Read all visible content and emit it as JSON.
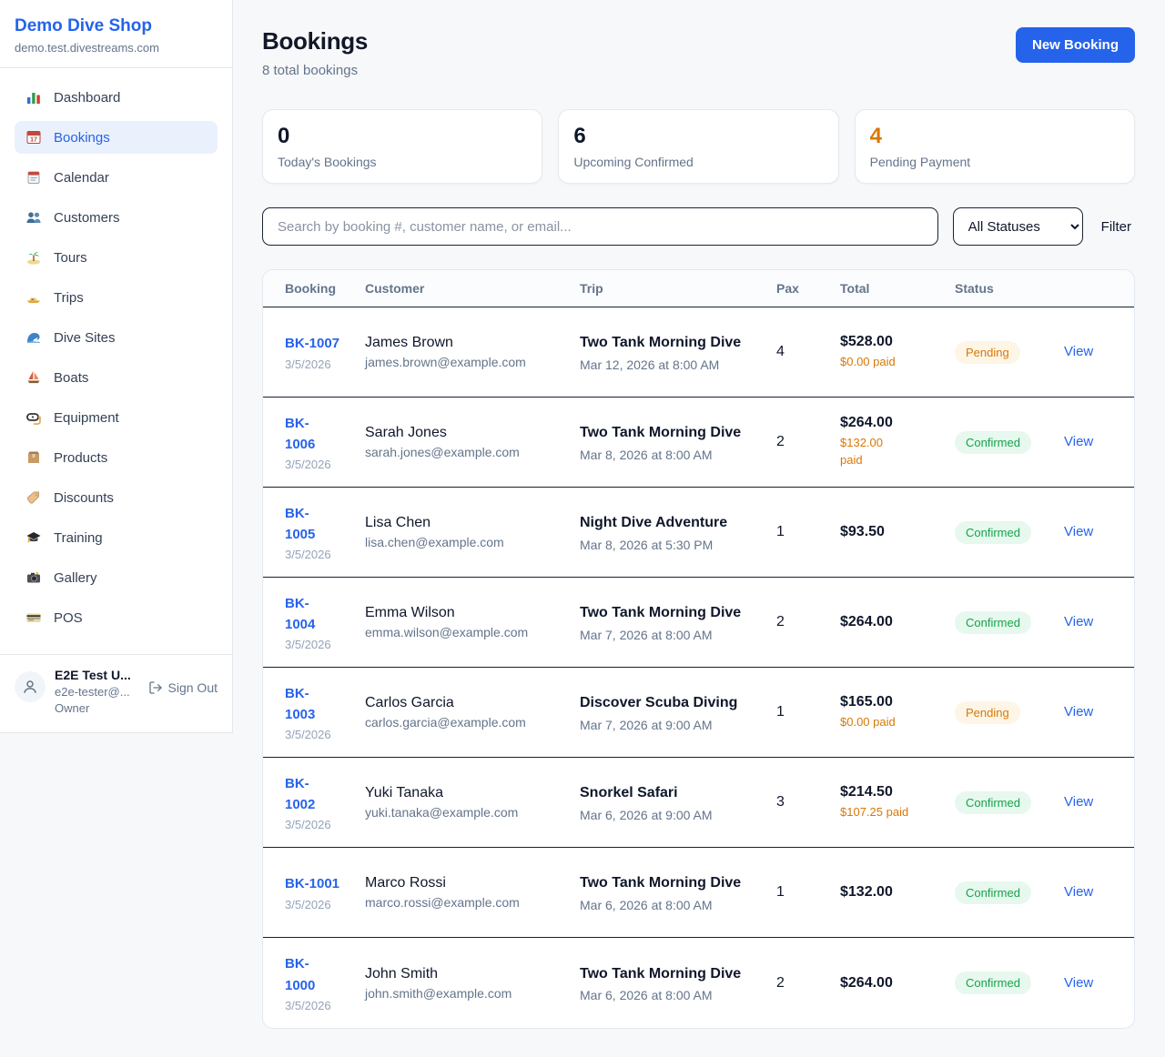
{
  "brand": {
    "name": "Demo Dive Shop",
    "domain": "demo.test.divestreams.com"
  },
  "sidebar": {
    "items": [
      {
        "label": "Dashboard",
        "icon": "bar-chart-icon",
        "active": false
      },
      {
        "label": "Bookings",
        "icon": "calendar-17-icon",
        "active": true
      },
      {
        "label": "Calendar",
        "icon": "calendar-pad-icon",
        "active": false
      },
      {
        "label": "Customers",
        "icon": "users-icon",
        "active": false
      },
      {
        "label": "Tours",
        "icon": "island-icon",
        "active": false
      },
      {
        "label": "Trips",
        "icon": "speedboat-icon",
        "active": false
      },
      {
        "label": "Dive Sites",
        "icon": "wave-icon",
        "active": false
      },
      {
        "label": "Boats",
        "icon": "sailboat-icon",
        "active": false
      },
      {
        "label": "Equipment",
        "icon": "dive-mask-icon",
        "active": false
      },
      {
        "label": "Products",
        "icon": "box-icon",
        "active": false
      },
      {
        "label": "Discounts",
        "icon": "tag-icon",
        "active": false
      },
      {
        "label": "Training",
        "icon": "grad-cap-icon",
        "active": false
      },
      {
        "label": "Gallery",
        "icon": "camera-icon",
        "active": false
      },
      {
        "label": "POS",
        "icon": "credit-card-icon",
        "active": false
      }
    ],
    "user": {
      "name": "E2E Test U...",
      "email": "e2e-tester@...",
      "role": "Owner",
      "signout_label": "Sign Out"
    }
  },
  "header": {
    "title": "Bookings",
    "subtitle": "8 total bookings",
    "new_booking_label": "New Booking"
  },
  "stats": [
    {
      "value": "0",
      "label": "Today's Bookings",
      "accent": false
    },
    {
      "value": "6",
      "label": "Upcoming Confirmed",
      "accent": false
    },
    {
      "value": "4",
      "label": "Pending Payment",
      "accent": true
    }
  ],
  "controls": {
    "search_placeholder": "Search by booking #, customer name, or email...",
    "status_filter_value": "All Statuses",
    "filter_label": "Filter"
  },
  "table": {
    "columns": [
      "Booking",
      "Customer",
      "Trip",
      "Pax",
      "Total",
      "Status"
    ],
    "view_label": "View",
    "rows": [
      {
        "id": "BK-1007",
        "date": "3/5/2026",
        "name": "James Brown",
        "email": "james.brown@example.com",
        "trip": "Two Tank Morning Dive",
        "datetime": "Mar 12, 2026 at 8:00 AM",
        "pax": "4",
        "total": "$528.00",
        "paid": "$0.00 paid",
        "status": "Pending",
        "status_type": "pending"
      },
      {
        "id": "BK-\n1006",
        "date": "3/5/2026",
        "name": "Sarah Jones",
        "email": "sarah.jones@example.com",
        "trip": "Two Tank Morning Dive",
        "datetime": "Mar 8, 2026 at 8:00 AM",
        "pax": "2",
        "total": "$264.00",
        "paid": "$132.00\npaid",
        "status": "Confirmed",
        "status_type": "confirmed"
      },
      {
        "id": "BK-\n1005",
        "date": "3/5/2026",
        "name": "Lisa Chen",
        "email": "lisa.chen@example.com",
        "trip": "Night Dive Adventure",
        "datetime": "Mar 8, 2026 at 5:30 PM",
        "pax": "1",
        "total": "$93.50",
        "paid": null,
        "status": "Confirmed",
        "status_type": "confirmed"
      },
      {
        "id": "BK-\n1004",
        "date": "3/5/2026",
        "name": "Emma Wilson",
        "email": "emma.wilson@example.com",
        "trip": "Two Tank Morning Dive",
        "datetime": "Mar 7, 2026 at 8:00 AM",
        "pax": "2",
        "total": "$264.00",
        "paid": null,
        "status": "Confirmed",
        "status_type": "confirmed"
      },
      {
        "id": "BK-\n1003",
        "date": "3/5/2026",
        "name": "Carlos Garcia",
        "email": "carlos.garcia@example.com",
        "trip": "Discover Scuba Diving",
        "datetime": "Mar 7, 2026 at 9:00 AM",
        "pax": "1",
        "total": "$165.00",
        "paid": "$0.00 paid",
        "status": "Pending",
        "status_type": "pending"
      },
      {
        "id": "BK-\n1002",
        "date": "3/5/2026",
        "name": "Yuki Tanaka",
        "email": "yuki.tanaka@example.com",
        "trip": "Snorkel Safari",
        "datetime": "Mar 6, 2026 at 9:00 AM",
        "pax": "3",
        "total": "$214.50",
        "paid": "$107.25 paid",
        "status": "Confirmed",
        "status_type": "confirmed"
      },
      {
        "id": "BK-1001",
        "date": "3/5/2026",
        "name": "Marco Rossi",
        "email": "marco.rossi@example.com",
        "trip": "Two Tank Morning Dive",
        "datetime": "Mar 6, 2026 at 8:00 AM",
        "pax": "1",
        "total": "$132.00",
        "paid": null,
        "status": "Confirmed",
        "status_type": "confirmed"
      },
      {
        "id": "BK-\n1000",
        "date": "3/5/2026",
        "name": "John Smith",
        "email": "john.smith@example.com",
        "trip": "Two Tank Morning Dive",
        "datetime": "Mar 6, 2026 at 8:00 AM",
        "pax": "2",
        "total": "$264.00",
        "paid": null,
        "status": "Confirmed",
        "status_type": "confirmed"
      }
    ]
  },
  "colors": {
    "brand_blue": "#2563eb",
    "accent_orange": "#d97706",
    "pending_bg": "#fdf6e7",
    "pending_text": "#d97706",
    "confirmed_bg": "#e7f8ee",
    "confirmed_text": "#16a34a"
  }
}
